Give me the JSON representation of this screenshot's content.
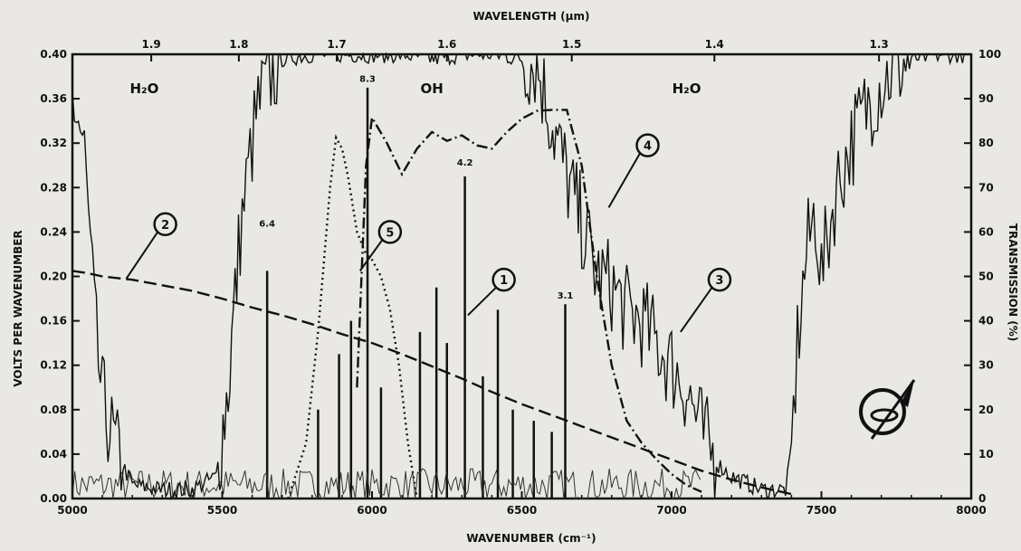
{
  "chart_data": {
    "type": "line",
    "title": "",
    "xlabel": "WAVENUMBER (cm⁻¹)",
    "x2label": "WAVELENGTH (μm)",
    "ylabel": "VOLTS PER WAVENUMBER",
    "y2label": "TRANSMISSION (%)",
    "xlim": [
      5000,
      8000
    ],
    "ylim": [
      0,
      0.4
    ],
    "y2lim": [
      0,
      100
    ],
    "grid": false,
    "x_ticks": [
      "5000",
      "5500",
      "6000",
      "6500",
      "7000",
      "7500",
      "8000"
    ],
    "y_ticks": [
      "0.00",
      "0.04",
      "0.08",
      "0.12",
      "0.16",
      "0.20",
      "0.24",
      "0.28",
      "0.32",
      "0.36",
      "0.40"
    ],
    "y2_ticks": [
      "0",
      "10",
      "20",
      "30",
      "40",
      "50",
      "60",
      "70",
      "80",
      "90",
      "100"
    ],
    "wavelength_ticks": [
      {
        "label": "1.9",
        "wavelength_um": 1.9
      },
      {
        "label": "1.8",
        "wavelength_um": 1.8
      },
      {
        "label": "1.7",
        "wavelength_um": 1.7
      },
      {
        "label": "1.6",
        "wavelength_um": 1.6
      },
      {
        "label": "1.5",
        "wavelength_um": 1.5
      },
      {
        "label": "1.4",
        "wavelength_um": 1.4
      },
      {
        "label": "1.3",
        "wavelength_um": 1.3
      }
    ],
    "region_labels": [
      {
        "text": "H₂O",
        "x": 5240,
        "y": 0.365
      },
      {
        "text": "OH",
        "x": 6200,
        "y": 0.365
      },
      {
        "text": "H₂O",
        "x": 7050,
        "y": 0.365
      }
    ],
    "peak_labels": [
      {
        "text": "8.3",
        "x": 5985,
        "y": 0.375
      },
      {
        "text": "4.2",
        "x": 6310,
        "y": 0.3
      },
      {
        "text": "6.4",
        "x": 5650,
        "y": 0.245
      },
      {
        "text": "3.1",
        "x": 6645,
        "y": 0.18
      }
    ],
    "callouts": [
      {
        "label": "1",
        "x": 6440,
        "y": 0.197,
        "target_x": 6320,
        "target_y": 0.165
      },
      {
        "label": "2",
        "x": 5310,
        "y": 0.247,
        "target_x": 5180,
        "target_y": 0.198
      },
      {
        "label": "3",
        "x": 7160,
        "y": 0.197,
        "target_x": 7030,
        "target_y": 0.15
      },
      {
        "label": "4",
        "x": 6920,
        "y": 0.318,
        "target_x": 6790,
        "target_y": 0.262
      },
      {
        "label": "5",
        "x": 6060,
        "y": 0.24,
        "target_x": 5960,
        "target_y": 0.205
      }
    ],
    "series": [
      {
        "label": "2",
        "style": "dashed",
        "axis": "left",
        "x": [
          5000,
          5050,
          5100,
          5200,
          5300,
          5400,
          5500,
          5600,
          5700,
          5800,
          5900,
          6000,
          6100,
          6200,
          6300,
          6400,
          6500,
          6600,
          6700,
          6800,
          6900,
          7000,
          7100,
          7200,
          7300,
          7400
        ],
        "y": [
          0.205,
          0.203,
          0.2,
          0.197,
          0.192,
          0.187,
          0.18,
          0.172,
          0.165,
          0.157,
          0.148,
          0.14,
          0.13,
          0.119,
          0.108,
          0.096,
          0.085,
          0.075,
          0.065,
          0.055,
          0.045,
          0.035,
          0.025,
          0.017,
          0.01,
          0.004
        ]
      },
      {
        "label": "4",
        "style": "dash-dot",
        "axis": "left",
        "x": [
          5950,
          5980,
          6000,
          6050,
          6100,
          6150,
          6200,
          6250,
          6300,
          6350,
          6400,
          6450,
          6500,
          6550,
          6600,
          6650,
          6700,
          6750,
          6800,
          6850,
          6900,
          6950,
          7000,
          7050,
          7100
        ],
        "y": [
          0.1,
          0.3,
          0.343,
          0.32,
          0.292,
          0.315,
          0.33,
          0.322,
          0.327,
          0.318,
          0.315,
          0.33,
          0.342,
          0.349,
          0.35,
          0.35,
          0.3,
          0.2,
          0.12,
          0.07,
          0.05,
          0.035,
          0.022,
          0.012,
          0.006
        ]
      },
      {
        "label": "5",
        "style": "dotted",
        "axis": "left",
        "x": [
          5720,
          5780,
          5820,
          5860,
          5880,
          5900,
          5920,
          5950,
          5980,
          6000,
          6030,
          6060,
          6090,
          6120,
          6150
        ],
        "y": [
          0.0,
          0.05,
          0.15,
          0.28,
          0.325,
          0.315,
          0.29,
          0.24,
          0.22,
          0.215,
          0.2,
          0.17,
          0.12,
          0.05,
          0.0
        ]
      },
      {
        "label": "1",
        "style": "solid",
        "axis": "left",
        "note": "emission line spectrum",
        "lines": [
          {
            "x": 5650,
            "y": 0.205
          },
          {
            "x": 5985,
            "y": 0.37
          },
          {
            "x": 6310,
            "y": 0.29
          },
          {
            "x": 6645,
            "y": 0.175
          },
          {
            "x": 5890,
            "y": 0.13
          },
          {
            "x": 5930,
            "y": 0.16
          },
          {
            "x": 6030,
            "y": 0.1
          },
          {
            "x": 6160,
            "y": 0.15
          },
          {
            "x": 6215,
            "y": 0.19
          },
          {
            "x": 6250,
            "y": 0.14
          },
          {
            "x": 6370,
            "y": 0.11
          },
          {
            "x": 6420,
            "y": 0.17
          },
          {
            "x": 6470,
            "y": 0.08
          },
          {
            "x": 6540,
            "y": 0.07
          },
          {
            "x": 6600,
            "y": 0.06
          },
          {
            "x": 5820,
            "y": 0.08
          }
        ]
      },
      {
        "label": "3",
        "style": "solid-noisy",
        "axis": "right",
        "note": "atmospheric transmission (%)",
        "x": [
          5000,
          5020,
          5040,
          5060,
          5080,
          5100,
          5150,
          5200,
          5300,
          5400,
          5480,
          5520,
          5560,
          5580,
          5600,
          5620,
          5650,
          5700,
          5800,
          5900,
          6000,
          6100,
          6200,
          6300,
          6400,
          6500,
          6550,
          6580,
          6620,
          6660,
          6700,
          6750,
          6800,
          6850,
          6900,
          6950,
          7000,
          7050,
          7100,
          7150,
          7200,
          7300,
          7380,
          7400,
          7420,
          7450,
          7480,
          7500,
          7550,
          7600,
          7650,
          7700,
          7750,
          7800,
          7900,
          8000
        ],
        "y": [
          90,
          85,
          78,
          55,
          35,
          22,
          10,
          3,
          2,
          2,
          5,
          25,
          60,
          70,
          80,
          88,
          94,
          99,
          100,
          100,
          100,
          100,
          99,
          100,
          100,
          99,
          98,
          90,
          80,
          70,
          62,
          50,
          48,
          42,
          40,
          35,
          30,
          25,
          15,
          8,
          5,
          2,
          2,
          10,
          35,
          55,
          65,
          50,
          70,
          80,
          88,
          94,
          97,
          99,
          100,
          100
        ]
      }
    ]
  }
}
